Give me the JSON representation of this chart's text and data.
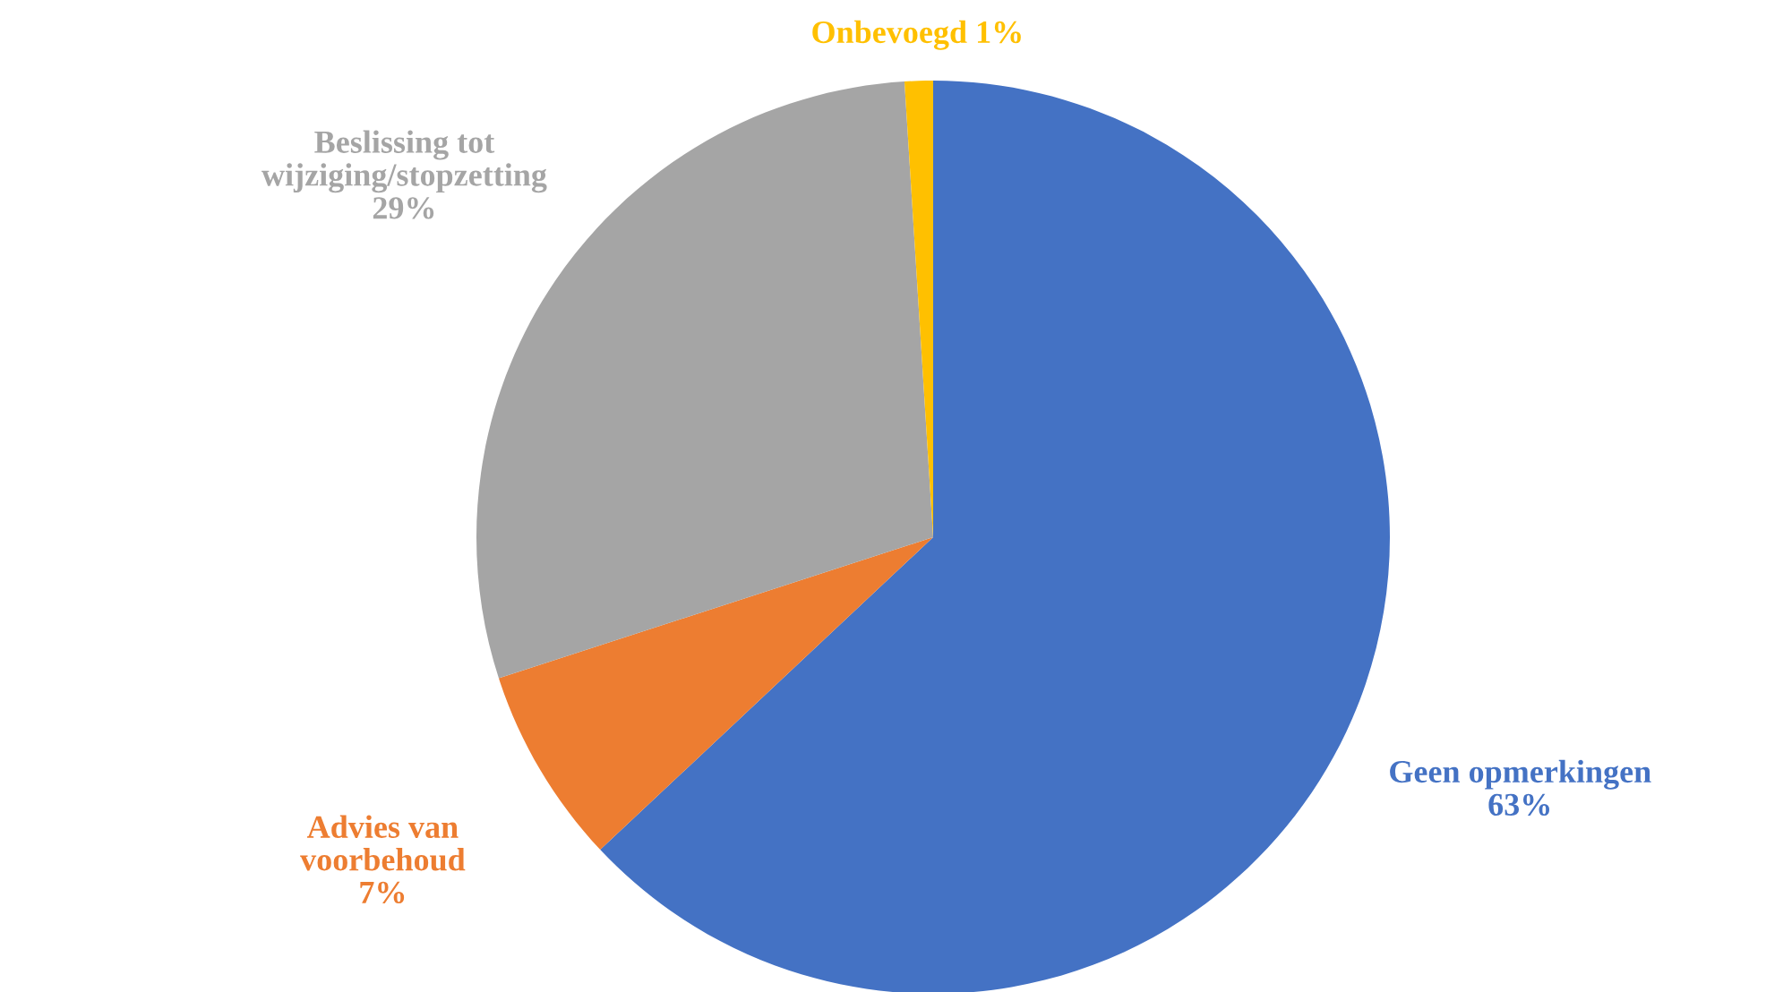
{
  "chart_data": {
    "type": "pie",
    "categories": [
      "Geen opmerkingen",
      "Advies van voorbehoud",
      "Beslissing tot wijziging/stopzetting",
      "Onbevoegd"
    ],
    "values": [
      63,
      7,
      29,
      1
    ],
    "colors": [
      "#4472c4",
      "#ed7d31",
      "#a5a5a5",
      "#ffc000"
    ],
    "value_labels": [
      "63%",
      "7%",
      "29%",
      "1%"
    ],
    "legend": false
  }
}
